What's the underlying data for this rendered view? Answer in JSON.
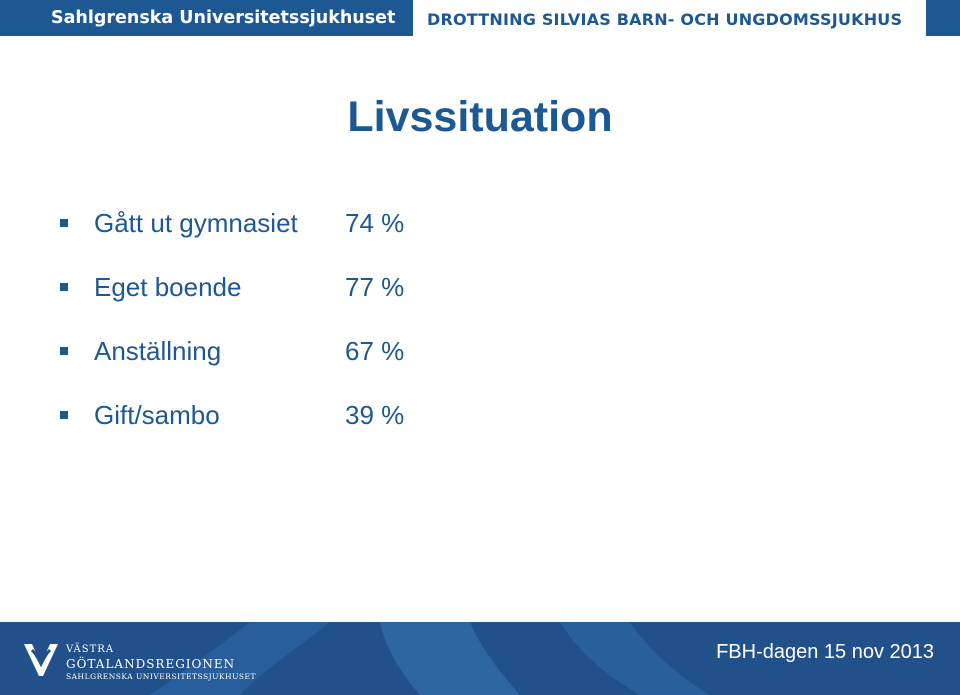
{
  "header": {
    "left_title": "Sahlgrenska Universitetssjukhuset",
    "right_title": "DROTTNING SILVIAS BARN- OCH UNGDOMSSJUKHUS"
  },
  "slide": {
    "title": "Livssituation",
    "items": [
      {
        "label": "Gått ut gymnasiet",
        "value": "74 %"
      },
      {
        "label": "Eget boende",
        "value": "77 %"
      },
      {
        "label": "Anställning",
        "value": "67 %"
      },
      {
        "label": "Gift/sambo",
        "value": "39 %"
      }
    ]
  },
  "footer": {
    "logo": {
      "line1": "VÄSTRA",
      "line2": "GÖTALANDSREGIONEN",
      "line3": "SAHLGRENSKA UNIVERSITETSSJUKHUSET"
    },
    "event_text": "FBH-dagen 15 nov 2013"
  },
  "colors": {
    "brand_blue": "#1e5893",
    "footer_blue": "#21508a"
  }
}
